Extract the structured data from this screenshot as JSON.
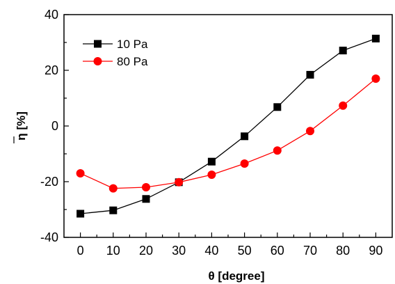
{
  "chart_data": {
    "type": "line",
    "title": "",
    "xlabel": "θ [degree]",
    "ylabel": "η [%]",
    "xlim": [
      -5,
      95
    ],
    "ylim": [
      -40,
      40
    ],
    "x": [
      0,
      10,
      20,
      30,
      40,
      50,
      60,
      70,
      80,
      90
    ],
    "x_ticks": [
      "0",
      "10",
      "20",
      "30",
      "40",
      "50",
      "60",
      "70",
      "80",
      "90"
    ],
    "y_ticks": [
      "-40",
      "-20",
      "0",
      "20",
      "40"
    ],
    "legend_position": "top-left",
    "grid": false,
    "series": [
      {
        "name": "10 Pa",
        "color": "#000000",
        "marker": "square",
        "values": [
          -31.5,
          -30.3,
          -26.2,
          -20.2,
          -12.8,
          -3.7,
          6.8,
          18.4,
          27.1,
          31.4
        ]
      },
      {
        "name": "80 Pa",
        "color": "#ff0000",
        "marker": "circle",
        "values": [
          -17.0,
          -22.4,
          -22.0,
          -20.2,
          -17.5,
          -13.5,
          -8.8,
          -1.8,
          7.3,
          17.0
        ]
      }
    ]
  }
}
